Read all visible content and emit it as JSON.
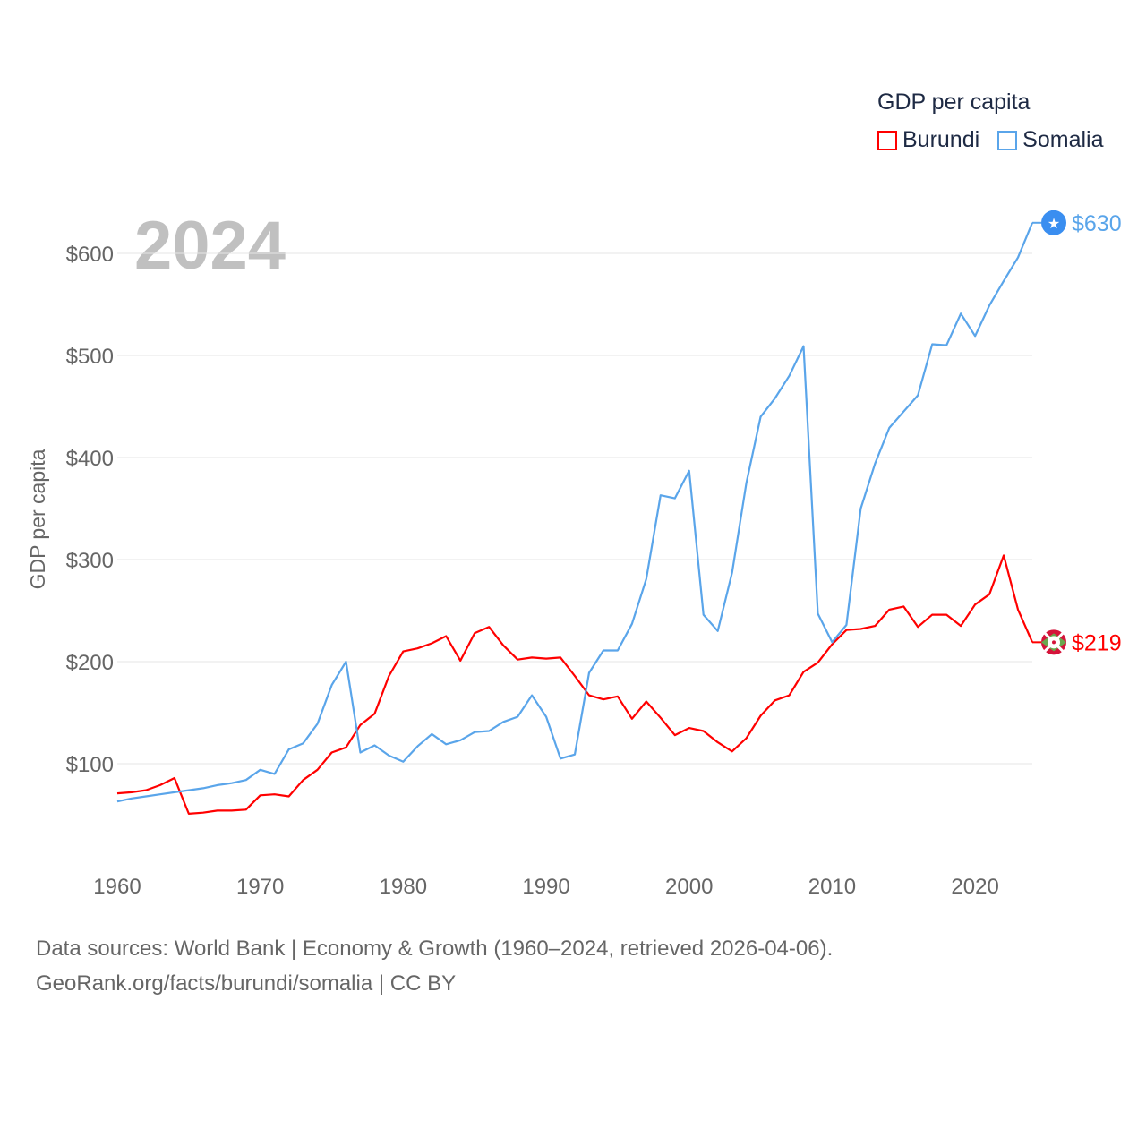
{
  "chart_data": {
    "type": "line",
    "title": "GDP per capita",
    "year_label": "2024",
    "ylabel": "GDP per capita",
    "xlabel": "",
    "ylim": [
      0,
      650
    ],
    "xlim": [
      1960,
      2024
    ],
    "yticks": [
      100,
      200,
      300,
      400,
      500,
      600
    ],
    "ytick_labels": [
      "$100",
      "$200",
      "$300",
      "$400",
      "$500",
      "$600"
    ],
    "xticks": [
      1960,
      1970,
      1980,
      1990,
      2000,
      2010,
      2020
    ],
    "xtick_labels": [
      "1960",
      "1970",
      "1980",
      "1990",
      "2000",
      "2010",
      "2020"
    ],
    "grid": true,
    "legend_position": "top-right",
    "series": [
      {
        "name": "Burundi",
        "color": "#ff0000",
        "end_label": "$219",
        "icon": "burundi-flag-icon",
        "values": [
          71,
          72,
          74,
          79,
          86,
          51,
          52,
          54,
          54,
          55,
          69,
          70,
          68,
          84,
          94,
          111,
          116,
          138,
          149,
          186,
          210,
          213,
          218,
          225,
          201,
          228,
          234,
          216,
          202,
          204,
          203,
          204,
          186,
          167,
          163,
          166,
          144,
          161,
          145,
          128,
          135,
          132,
          121,
          112,
          125,
          147,
          162,
          167,
          190,
          199,
          217,
          231,
          232,
          235,
          251,
          254,
          234,
          246,
          246,
          235,
          256,
          266,
          304,
          251,
          219
        ]
      },
      {
        "name": "Somalia",
        "color": "#5aa5ea",
        "end_label": "$630",
        "icon": "somalia-flag-icon",
        "values": [
          63,
          66,
          68,
          70,
          72,
          74,
          76,
          79,
          81,
          84,
          94,
          90,
          114,
          120,
          139,
          177,
          200,
          111,
          118,
          108,
          102,
          117,
          129,
          119,
          123,
          131,
          132,
          141,
          146,
          167,
          146,
          105,
          109,
          189,
          211,
          211,
          237,
          281,
          363,
          360,
          387,
          246,
          230,
          287,
          375,
          440,
          458,
          480,
          509,
          247,
          219,
          236,
          350,
          394,
          429,
          445,
          461,
          511,
          510,
          541,
          519,
          549,
          573,
          596,
          630
        ]
      }
    ]
  },
  "footer": {
    "line1": "Data sources: World Bank | Economy & Growth (1960–2024, retrieved 2026-04-06).",
    "line2": "GeoRank.org/facts/burundi/somalia | CC BY"
  }
}
